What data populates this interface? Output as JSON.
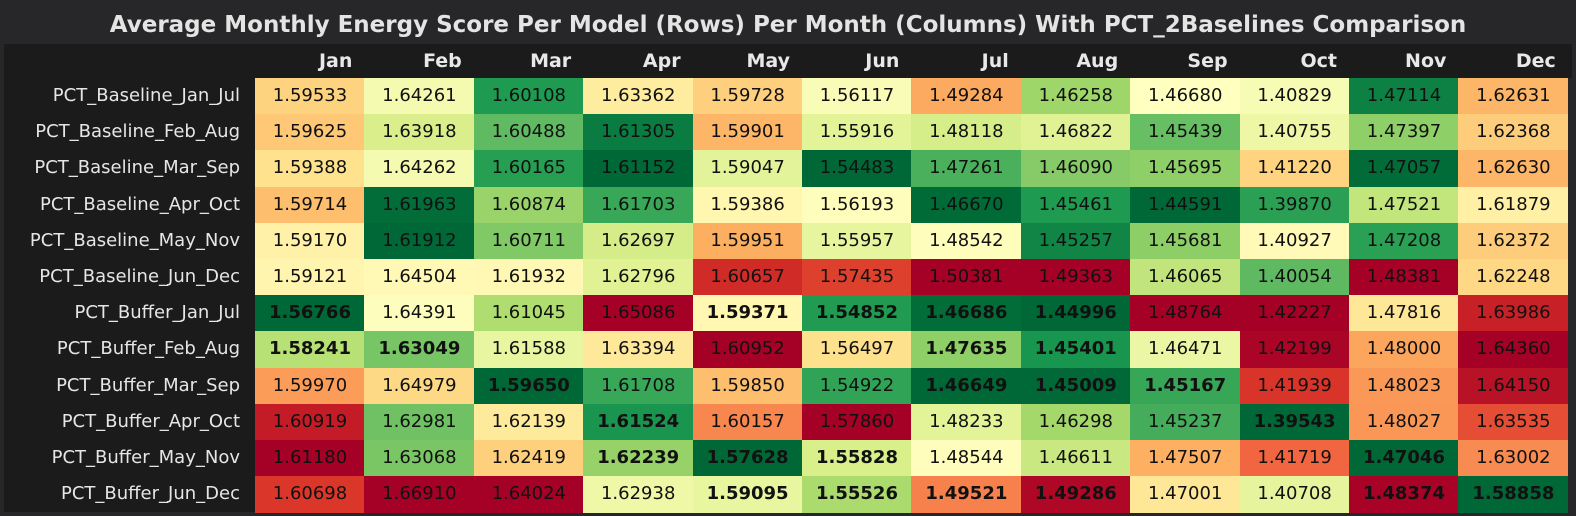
{
  "chart_data": {
    "type": "heatmap",
    "title": "Average Monthly Energy Score Per Model (Rows) Per Month (Columns) With PCT_2Baselines Comparison",
    "columns": [
      "Jan",
      "Feb",
      "Mar",
      "Apr",
      "May",
      "Jun",
      "Jul",
      "Aug",
      "Sep",
      "Oct",
      "Nov",
      "Dec"
    ],
    "rows": [
      "PCT_Baseline_Jan_Jul",
      "PCT_Baseline_Feb_Aug",
      "PCT_Baseline_Mar_Sep",
      "PCT_Baseline_Apr_Oct",
      "PCT_Baseline_May_Nov",
      "PCT_Baseline_Jun_Dec",
      "PCT_Buffer_Jan_Jul",
      "PCT_Buffer_Feb_Aug",
      "PCT_Buffer_Mar_Sep",
      "PCT_Buffer_Apr_Oct",
      "PCT_Buffer_May_Nov",
      "PCT_Buffer_Jun_Dec"
    ],
    "values": [
      [
        "1.59533",
        "1.64261",
        "1.60108",
        "1.63362",
        "1.59728",
        "1.56117",
        "1.49284",
        "1.46258",
        "1.46680",
        "1.40829",
        "1.47114",
        "1.62631"
      ],
      [
        "1.59625",
        "1.63918",
        "1.60488",
        "1.61305",
        "1.59901",
        "1.55916",
        "1.48118",
        "1.46822",
        "1.45439",
        "1.40755",
        "1.47397",
        "1.62368"
      ],
      [
        "1.59388",
        "1.64262",
        "1.60165",
        "1.61152",
        "1.59047",
        "1.54483",
        "1.47261",
        "1.46090",
        "1.45695",
        "1.41220",
        "1.47057",
        "1.62630"
      ],
      [
        "1.59714",
        "1.61963",
        "1.60874",
        "1.61703",
        "1.59386",
        "1.56193",
        "1.46670",
        "1.45461",
        "1.44591",
        "1.39870",
        "1.47521",
        "1.61879"
      ],
      [
        "1.59170",
        "1.61912",
        "1.60711",
        "1.62697",
        "1.59951",
        "1.55957",
        "1.48542",
        "1.45257",
        "1.45681",
        "1.40927",
        "1.47208",
        "1.62372"
      ],
      [
        "1.59121",
        "1.64504",
        "1.61932",
        "1.62796",
        "1.60657",
        "1.57435",
        "1.50381",
        "1.49363",
        "1.46065",
        "1.40054",
        "1.48381",
        "1.62248"
      ],
      [
        "1.56766",
        "1.64391",
        "1.61045",
        "1.65086",
        "1.59371",
        "1.54852",
        "1.46686",
        "1.44996",
        "1.48764",
        "1.42227",
        "1.47816",
        "1.63986"
      ],
      [
        "1.58241",
        "1.63049",
        "1.61588",
        "1.63394",
        "1.60952",
        "1.56497",
        "1.47635",
        "1.45401",
        "1.46471",
        "1.42199",
        "1.48000",
        "1.64360"
      ],
      [
        "1.59970",
        "1.64979",
        "1.59650",
        "1.61708",
        "1.59850",
        "1.54922",
        "1.46649",
        "1.45009",
        "1.45167",
        "1.41939",
        "1.48023",
        "1.64150"
      ],
      [
        "1.60919",
        "1.62981",
        "1.62139",
        "1.61524",
        "1.60157",
        "1.57860",
        "1.48233",
        "1.46298",
        "1.45237",
        "1.39543",
        "1.48027",
        "1.63535"
      ],
      [
        "1.61180",
        "1.63068",
        "1.62419",
        "1.62239",
        "1.57628",
        "1.55828",
        "1.48544",
        "1.46611",
        "1.47507",
        "1.41719",
        "1.47046",
        "1.63002"
      ],
      [
        "1.60698",
        "1.66910",
        "1.64024",
        "1.62938",
        "1.59095",
        "1.55526",
        "1.49521",
        "1.49286",
        "1.47001",
        "1.40708",
        "1.48374",
        "1.58858"
      ]
    ],
    "bold_cells": [
      [
        6,
        0
      ],
      [
        6,
        4
      ],
      [
        6,
        5
      ],
      [
        6,
        6
      ],
      [
        6,
        7
      ],
      [
        7,
        0
      ],
      [
        7,
        1
      ],
      [
        7,
        6
      ],
      [
        7,
        7
      ],
      [
        8,
        2
      ],
      [
        8,
        6
      ],
      [
        8,
        7
      ],
      [
        8,
        8
      ],
      [
        9,
        3
      ],
      [
        9,
        9
      ],
      [
        10,
        3
      ],
      [
        10,
        4
      ],
      [
        10,
        5
      ],
      [
        10,
        10
      ],
      [
        11,
        4
      ],
      [
        11,
        5
      ],
      [
        11,
        6
      ],
      [
        11,
        7
      ],
      [
        11,
        10
      ],
      [
        11,
        11
      ]
    ],
    "colormap": "RdYlGn_r (per column, low = green, high = red)",
    "colors": {
      "background": "#272729",
      "header_background": "#1b1b1c",
      "low": "#006837",
      "mid": "#ffffbf",
      "high": "#a50026"
    }
  }
}
